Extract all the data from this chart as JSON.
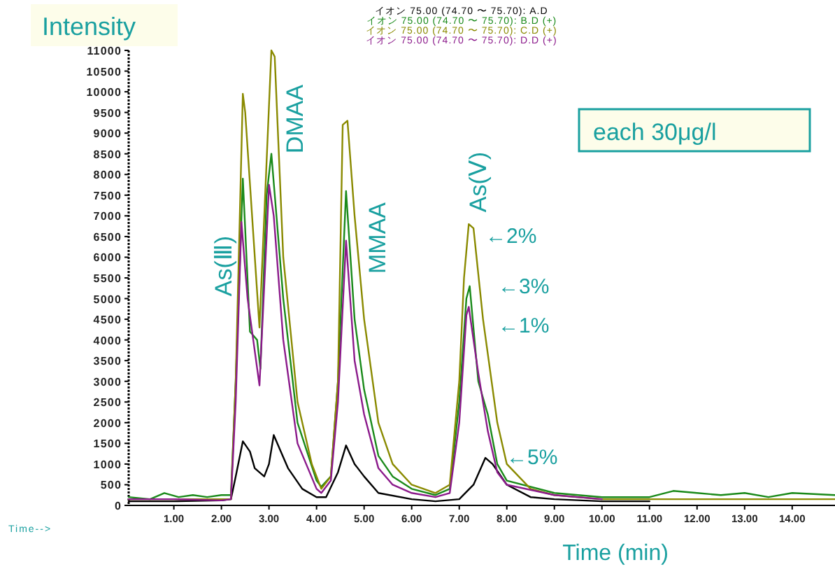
{
  "chart_data": {
    "type": "line",
    "ylabel": "Intensity",
    "xlabel": "Time (min)",
    "legend": "top",
    "xlim": [
      0.05,
      14.9
    ],
    "xticks": [
      {
        "value": 1,
        "label": "1.00"
      },
      {
        "value": 2,
        "label": "2.00"
      },
      {
        "value": 3,
        "label": "3.00"
      },
      {
        "value": 4,
        "label": "4.00"
      },
      {
        "value": 5,
        "label": "5.00"
      },
      {
        "value": 6,
        "label": "6.00"
      },
      {
        "value": 7,
        "label": "7.00"
      },
      {
        "value": 8,
        "label": "8.00"
      },
      {
        "value": 9,
        "label": "9.00"
      },
      {
        "value": 10,
        "label": "10.00"
      },
      {
        "value": 11,
        "label": "11.00"
      },
      {
        "value": 12,
        "label": "12.00"
      },
      {
        "value": 13,
        "label": "13.00"
      },
      {
        "value": 14,
        "label": "14.00"
      }
    ],
    "ylim": [
      0,
      11000
    ],
    "yticks": [
      0,
      500,
      1000,
      1500,
      2000,
      2500,
      3000,
      3500,
      4000,
      4500,
      5000,
      5500,
      6000,
      6500,
      7000,
      7500,
      8000,
      8500,
      9000,
      9500,
      10000,
      10500,
      11000
    ],
    "grid": false,
    "marker": "none",
    "line_style": "solid",
    "series": [
      {
        "name": "イオン  75.00 (74.70 〜 75.70): A.D",
        "color": "#000000",
        "x": [
          0.05,
          1,
          2,
          2.2,
          2.3,
          2.45,
          2.6,
          2.7,
          2.9,
          3.0,
          3.1,
          3.25,
          3.4,
          3.7,
          4.0,
          4.2,
          4.45,
          4.62,
          4.8,
          5.0,
          5.3,
          6.0,
          6.5,
          7.0,
          7.3,
          7.55,
          7.7,
          8.0,
          8.5,
          9,
          10,
          11
        ],
        "values": [
          100,
          100,
          120,
          150,
          700,
          1550,
          1300,
          900,
          700,
          1000,
          1700,
          1300,
          900,
          400,
          200,
          200,
          800,
          1450,
          1000,
          700,
          300,
          150,
          100,
          150,
          500,
          1150,
          1000,
          500,
          200,
          150,
          100,
          100
        ]
      },
      {
        "name": "イオン  75.00 (74.70 〜 75.70): B.D (+)",
        "color": "#1a8a1a",
        "x": [
          0.05,
          0.5,
          0.8,
          1.1,
          1.4,
          1.7,
          2.0,
          2.2,
          2.3,
          2.45,
          2.6,
          2.75,
          2.82,
          2.95,
          3.05,
          3.3,
          3.6,
          4.0,
          4.1,
          4.3,
          4.45,
          4.62,
          4.8,
          5.0,
          5.3,
          5.6,
          6.0,
          6.5,
          6.8,
          7.0,
          7.15,
          7.22,
          7.4,
          7.6,
          7.8,
          8.0,
          9,
          10,
          11,
          11.5,
          12,
          12.5,
          13,
          13.5,
          14,
          14.9
        ],
        "values": [
          200,
          150,
          300,
          200,
          250,
          200,
          250,
          250,
          3000,
          7900,
          4200,
          4000,
          3300,
          7500,
          8500,
          5000,
          2000,
          600,
          450,
          700,
          3000,
          7600,
          4500,
          2800,
          1200,
          700,
          400,
          250,
          400,
          2500,
          5000,
          5300,
          3000,
          2200,
          1000,
          600,
          300,
          200,
          200,
          350,
          300,
          250,
          300,
          200,
          300,
          250
        ]
      },
      {
        "name": "イオン  75.00 (74.70 〜 75.70): C.D (+)",
        "color": "#8a8a00",
        "x": [
          0.05,
          1,
          2,
          2.2,
          2.3,
          2.45,
          2.5,
          2.8,
          3.05,
          3.12,
          3.3,
          3.6,
          3.9,
          4.1,
          4.3,
          4.45,
          4.55,
          4.65,
          4.8,
          5.0,
          5.3,
          5.6,
          6.0,
          6.5,
          6.8,
          7.0,
          7.1,
          7.2,
          7.3,
          7.5,
          7.8,
          8.0,
          8.5,
          9,
          10,
          12,
          14.9
        ],
        "values": [
          150,
          150,
          150,
          150,
          3000,
          9950,
          9500,
          4300,
          11000,
          10850,
          6000,
          2500,
          1000,
          400,
          700,
          3000,
          9200,
          9300,
          7000,
          4500,
          2000,
          1000,
          500,
          300,
          500,
          3000,
          5500,
          6800,
          6700,
          4500,
          2000,
          1000,
          400,
          250,
          150,
          150,
          150
        ]
      },
      {
        "name": "イオン  75.00 (74.70 〜 75.70): D.D (+)",
        "color": "#8b1a8b",
        "x": [
          0.05,
          1,
          2,
          2.2,
          2.3,
          2.42,
          2.55,
          2.8,
          2.95,
          3.0,
          3.1,
          3.3,
          3.6,
          4.0,
          4.1,
          4.3,
          4.45,
          4.62,
          4.8,
          5.0,
          5.3,
          5.6,
          6.0,
          6.5,
          6.8,
          7.0,
          7.15,
          7.2,
          7.4,
          7.6,
          7.8,
          8.0,
          9,
          10
        ],
        "values": [
          150,
          150,
          120,
          150,
          2500,
          6850,
          5000,
          2900,
          6500,
          7750,
          7000,
          4000,
          1500,
          400,
          300,
          600,
          2500,
          6400,
          3500,
          2200,
          900,
          500,
          300,
          200,
          300,
          2000,
          4600,
          4800,
          3200,
          1800,
          800,
          500,
          250,
          150
        ]
      }
    ],
    "annotations": [
      "As(Ⅲ)",
      "DMAA",
      "MMAA",
      "As(Ⅴ)",
      "←2%",
      "←3%",
      "←1%",
      "←5%",
      "each 30μg/l",
      "Time-->"
    ]
  }
}
